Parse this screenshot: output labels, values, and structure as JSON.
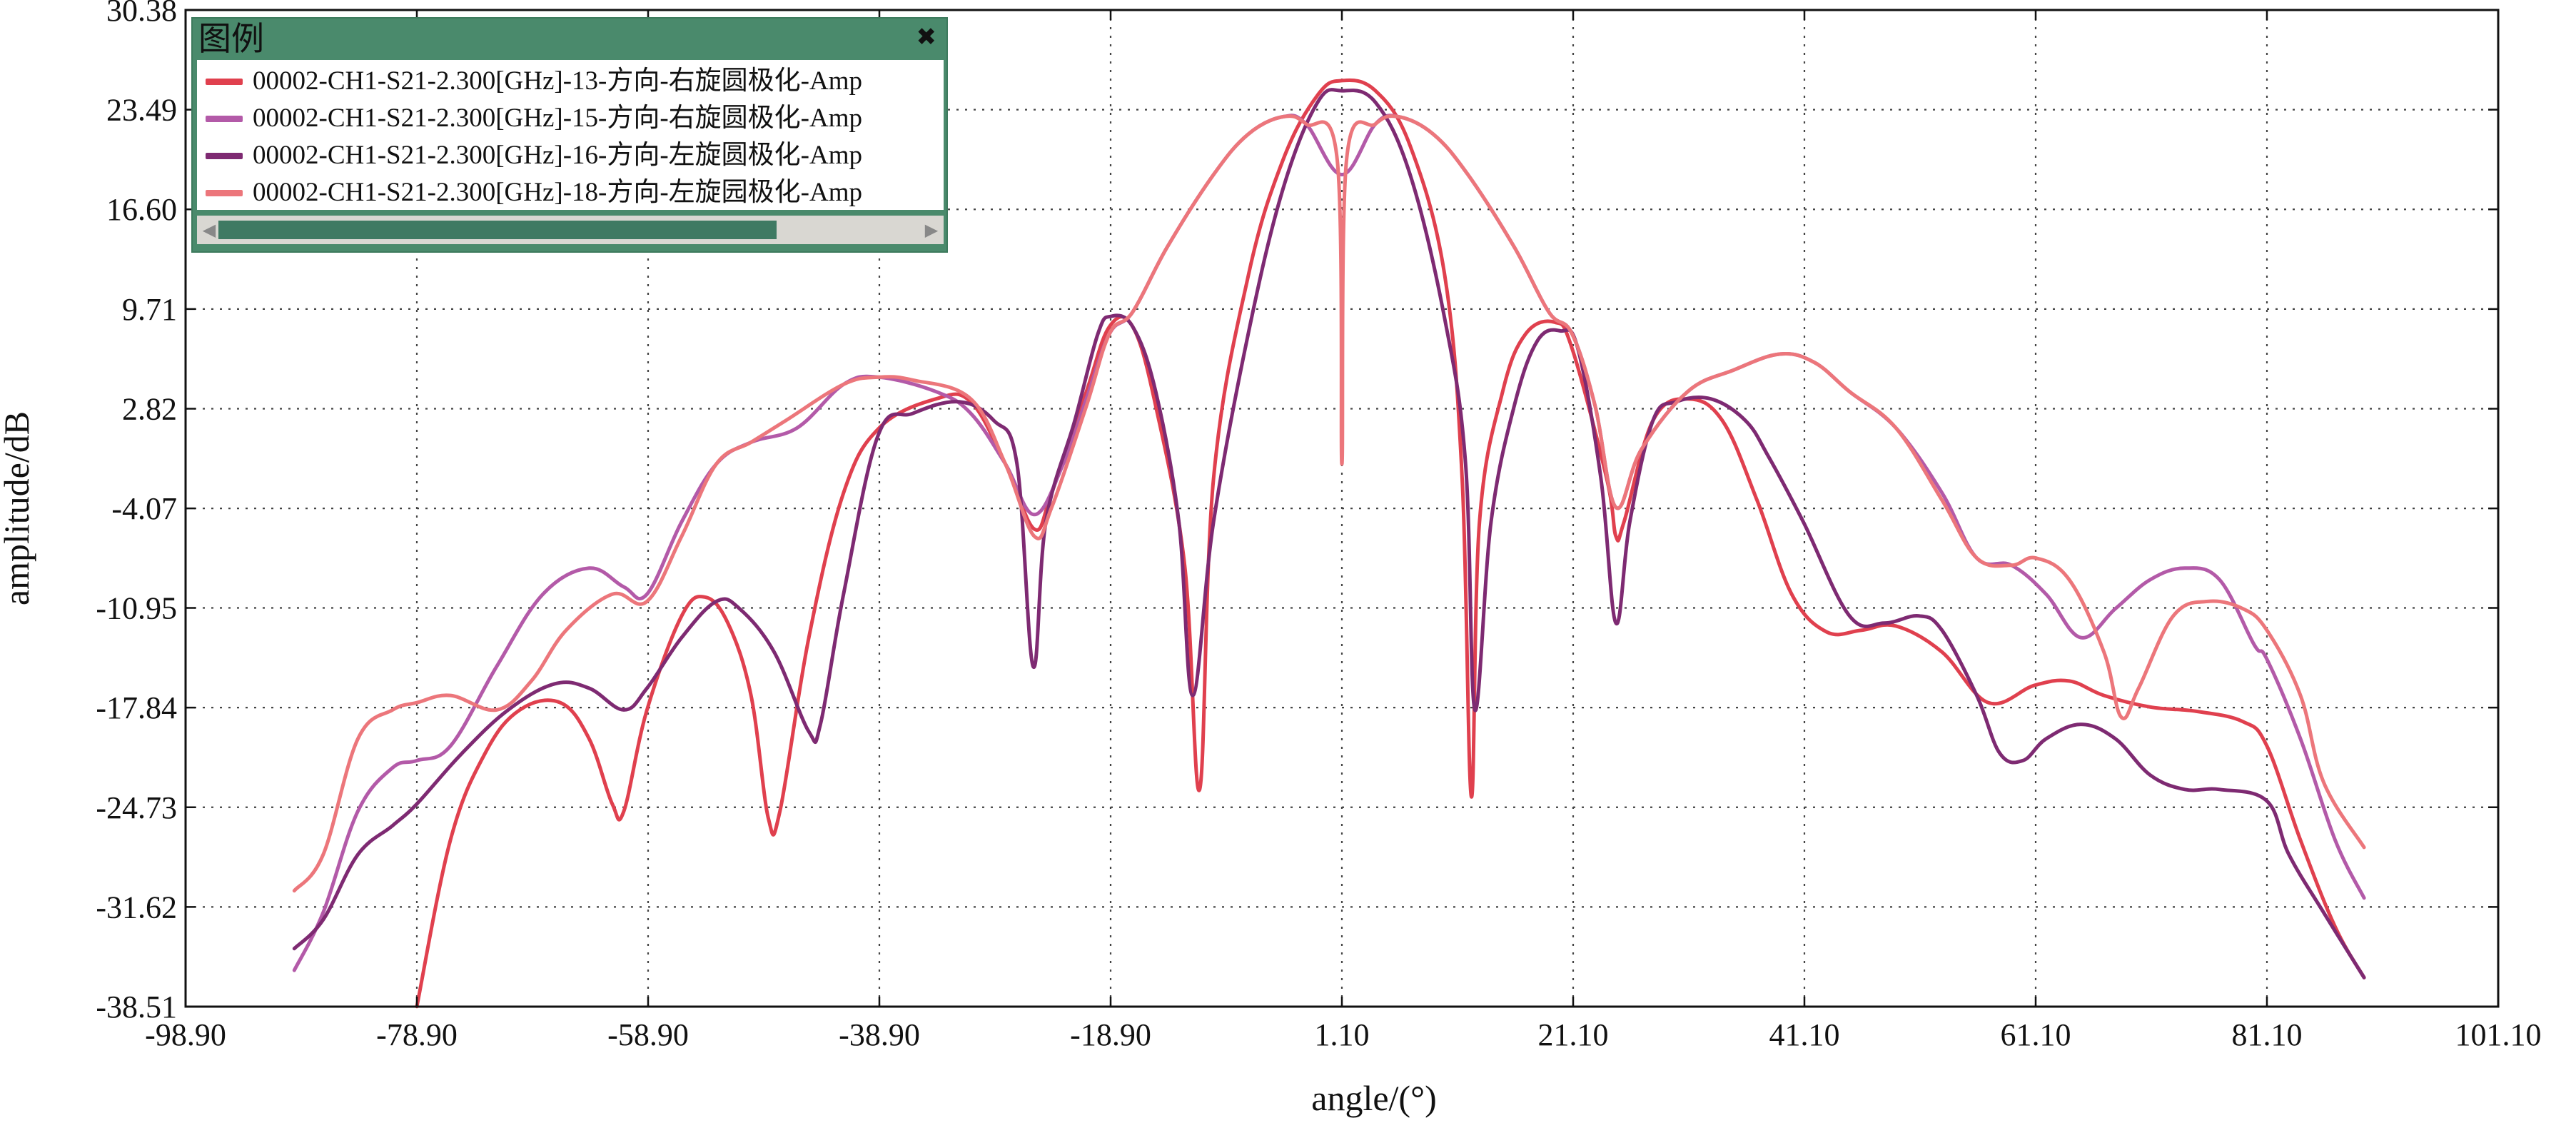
{
  "chart_data": {
    "type": "line",
    "xlabel": "angle/(°)",
    "ylabel": "amplitude/dB",
    "xlim": [
      -98.9,
      101.1
    ],
    "ylim": [
      -38.51,
      30.38
    ],
    "x_ticks": [
      "-98.90",
      "-78.90",
      "-58.90",
      "-38.90",
      "-18.90",
      "1.10",
      "21.10",
      "41.10",
      "61.10",
      "81.10",
      "101.10"
    ],
    "y_ticks": [
      "30.38",
      "23.49",
      "16.60",
      "9.71",
      "2.82",
      "-4.07",
      "-10.95",
      "-17.84",
      "-24.73",
      "-31.62",
      "-38.51"
    ],
    "grid": true,
    "legend_position": "top-left",
    "series": [
      {
        "name": "00002-CH1-S21-2.300[GHz]-13-方向-右旋圆极化-Amp",
        "color": "#e0404e",
        "points": [
          [
            -78.9,
            -38.5
          ],
          [
            -76,
            -27
          ],
          [
            -73,
            -21
          ],
          [
            -70,
            -18
          ],
          [
            -66.5,
            -17.5
          ],
          [
            -64,
            -20
          ],
          [
            -62,
            -24.5
          ],
          [
            -61,
            -25
          ],
          [
            -59,
            -18
          ],
          [
            -56,
            -11.5
          ],
          [
            -54,
            -10.2
          ],
          [
            -52,
            -12
          ],
          [
            -50,
            -17
          ],
          [
            -48.5,
            -25.5
          ],
          [
            -47.5,
            -25
          ],
          [
            -45,
            -13
          ],
          [
            -42,
            -3
          ],
          [
            -38.9,
            1.5
          ],
          [
            -34,
            3.5
          ],
          [
            -31,
            3.3
          ],
          [
            -28,
            -1
          ],
          [
            -25.5,
            -5.5
          ],
          [
            -24,
            -3
          ],
          [
            -21,
            4
          ],
          [
            -19,
            8.5
          ],
          [
            -17,
            8.5
          ],
          [
            -15,
            3
          ],
          [
            -12.5,
            -8
          ],
          [
            -11.2,
            -23.5
          ],
          [
            -10,
            -2
          ],
          [
            -7,
            12
          ],
          [
            -4,
            20
          ],
          [
            -1,
            24.5
          ],
          [
            1.1,
            25.5
          ],
          [
            4,
            24.8
          ],
          [
            7,
            21
          ],
          [
            10,
            12
          ],
          [
            11.5,
            -2
          ],
          [
            12.3,
            -24
          ],
          [
            13,
            -5
          ],
          [
            15,
            4
          ],
          [
            17,
            8
          ],
          [
            19.5,
            8.8
          ],
          [
            21,
            7
          ],
          [
            24,
            -2
          ],
          [
            24.8,
            -6
          ],
          [
            25.5,
            -5
          ],
          [
            28,
            2
          ],
          [
            31,
            3.5
          ],
          [
            34,
            2
          ],
          [
            37,
            -3.5
          ],
          [
            40,
            -10
          ],
          [
            43,
            -12.6
          ],
          [
            46,
            -12.5
          ],
          [
            49,
            -12.2
          ],
          [
            53,
            -14
          ],
          [
            57,
            -17.5
          ],
          [
            61,
            -16.3
          ],
          [
            64,
            -16
          ],
          [
            67,
            -17
          ],
          [
            71,
            -17.8
          ],
          [
            75,
            -18.1
          ],
          [
            79,
            -18.8
          ],
          [
            81.1,
            -20.5
          ],
          [
            84,
            -27
          ],
          [
            87,
            -33
          ],
          [
            89.5,
            -36.5
          ]
        ]
      },
      {
        "name": "00002-CH1-S21-2.300[GHz]-15-方向-右旋圆极化-Amp",
        "color": "#b35aa8",
        "points": [
          [
            -89.5,
            -36
          ],
          [
            -87,
            -32
          ],
          [
            -84,
            -25
          ],
          [
            -81,
            -22
          ],
          [
            -78.9,
            -21.5
          ],
          [
            -76,
            -20.5
          ],
          [
            -72,
            -15
          ],
          [
            -68,
            -10
          ],
          [
            -64,
            -8.2
          ],
          [
            -61,
            -9.5
          ],
          [
            -59,
            -10
          ],
          [
            -56,
            -5
          ],
          [
            -53,
            -1
          ],
          [
            -50,
            0.5
          ],
          [
            -46,
            1.5
          ],
          [
            -42,
            4.5
          ],
          [
            -39,
            5
          ],
          [
            -34,
            4
          ],
          [
            -31,
            2.5
          ],
          [
            -28,
            -1
          ],
          [
            -25.5,
            -4.5
          ],
          [
            -23,
            -1
          ],
          [
            -21,
            3.5
          ],
          [
            -19,
            8
          ],
          [
            -17,
            9.5
          ],
          [
            -14,
            14
          ],
          [
            -10,
            19
          ],
          [
            -7,
            21.8
          ],
          [
            -4,
            23
          ],
          [
            -2,
            22.5
          ],
          [
            1.1,
            19
          ],
          [
            4,
            22.5
          ],
          [
            6,
            23
          ],
          [
            9,
            21.8
          ],
          [
            12,
            19
          ],
          [
            16,
            14
          ],
          [
            19,
            9.5
          ],
          [
            21,
            8
          ],
          [
            23,
            3
          ],
          [
            24.8,
            -4
          ],
          [
            27,
            0
          ],
          [
            31,
            4
          ],
          [
            35,
            5.5
          ],
          [
            39,
            6.6
          ],
          [
            42,
            6
          ],
          [
            45,
            4
          ],
          [
            49,
            1.5
          ],
          [
            53,
            -3
          ],
          [
            56,
            -7.5
          ],
          [
            59,
            -8
          ],
          [
            62,
            -10
          ],
          [
            65,
            -13
          ],
          [
            68,
            -11
          ],
          [
            71,
            -9
          ],
          [
            74,
            -8.2
          ],
          [
            77,
            -9
          ],
          [
            80,
            -13.5
          ],
          [
            81.1,
            -14.5
          ],
          [
            84,
            -20
          ],
          [
            87,
            -27
          ],
          [
            89.5,
            -31
          ]
        ]
      },
      {
        "name": "00002-CH1-S21-2.300[GHz]-16-方向-左旋圆极化-Amp",
        "color": "#7e2a72",
        "points": [
          [
            -89.5,
            -34.5
          ],
          [
            -87,
            -32.5
          ],
          [
            -84,
            -28
          ],
          [
            -81,
            -26
          ],
          [
            -78.9,
            -24.5
          ],
          [
            -75,
            -21
          ],
          [
            -71,
            -18
          ],
          [
            -67,
            -16.2
          ],
          [
            -64,
            -16.5
          ],
          [
            -61,
            -18
          ],
          [
            -59,
            -16.5
          ],
          [
            -56,
            -13
          ],
          [
            -53,
            -10.5
          ],
          [
            -51,
            -11
          ],
          [
            -48,
            -14
          ],
          [
            -45,
            -19.5
          ],
          [
            -44,
            -19
          ],
          [
            -42,
            -10
          ],
          [
            -39,
            1
          ],
          [
            -36,
            2.5
          ],
          [
            -32,
            3.3
          ],
          [
            -29,
            2
          ],
          [
            -27,
            -1
          ],
          [
            -25.6,
            -15
          ],
          [
            -24.5,
            -5
          ],
          [
            -22,
            2
          ],
          [
            -20,
            8
          ],
          [
            -18.9,
            9.2
          ],
          [
            -17,
            8.5
          ],
          [
            -15,
            4
          ],
          [
            -13,
            -5
          ],
          [
            -11.8,
            -17
          ],
          [
            -10,
            -5
          ],
          [
            -7,
            8
          ],
          [
            -4,
            18
          ],
          [
            -1,
            24
          ],
          [
            1.1,
            24.8
          ],
          [
            4,
            24
          ],
          [
            7,
            19
          ],
          [
            10,
            9
          ],
          [
            11.8,
            -1
          ],
          [
            12.6,
            -18
          ],
          [
            14,
            -5
          ],
          [
            16,
            3
          ],
          [
            18,
            7.5
          ],
          [
            20,
            8.2
          ],
          [
            21.5,
            7
          ],
          [
            23.5,
            -2
          ],
          [
            24.8,
            -12
          ],
          [
            26,
            -5
          ],
          [
            28,
            2
          ],
          [
            30,
            3.3
          ],
          [
            33,
            3.5
          ],
          [
            36,
            2
          ],
          [
            38,
            -0.5
          ],
          [
            41,
            -5
          ],
          [
            45,
            -11.5
          ],
          [
            48,
            -12
          ],
          [
            51,
            -11.5
          ],
          [
            53,
            -12.5
          ],
          [
            56,
            -17
          ],
          [
            58,
            -21
          ],
          [
            60,
            -21.5
          ],
          [
            62,
            -20
          ],
          [
            65,
            -19
          ],
          [
            68,
            -20
          ],
          [
            71,
            -22.5
          ],
          [
            74,
            -23.5
          ],
          [
            77,
            -23.5
          ],
          [
            81.1,
            -24.3
          ],
          [
            83,
            -28
          ],
          [
            86,
            -32
          ],
          [
            89.5,
            -36.5
          ]
        ]
      },
      {
        "name": "00002-CH1-S21-2.300[GHz]-18-方向-左旋园极化-Amp",
        "color": "#ec767b",
        "points": [
          [
            -89.5,
            -30.5
          ],
          [
            -87,
            -28
          ],
          [
            -84,
            -20
          ],
          [
            -81,
            -18
          ],
          [
            -78.9,
            -17.5
          ],
          [
            -76,
            -17
          ],
          [
            -72,
            -18
          ],
          [
            -69,
            -16
          ],
          [
            -66,
            -12.5
          ],
          [
            -62,
            -10
          ],
          [
            -59,
            -10.5
          ],
          [
            -56,
            -6
          ],
          [
            -53,
            -1
          ],
          [
            -50,
            0.5
          ],
          [
            -47,
            2
          ],
          [
            -42,
            4.5
          ],
          [
            -39,
            5
          ],
          [
            -36,
            4.8
          ],
          [
            -31,
            3.5
          ],
          [
            -28,
            -1
          ],
          [
            -25.5,
            -6
          ],
          [
            -24,
            -4
          ],
          [
            -21,
            3
          ],
          [
            -19,
            8
          ],
          [
            -17,
            9.5
          ],
          [
            -14,
            14
          ],
          [
            -10,
            19
          ],
          [
            -7,
            21.8
          ],
          [
            -4,
            23
          ],
          [
            -2,
            22.5
          ],
          [
            0.7,
            20
          ],
          [
            1.1,
            -1
          ],
          [
            1.5,
            20
          ],
          [
            4,
            22.5
          ],
          [
            6,
            23
          ],
          [
            9,
            21.8
          ],
          [
            12,
            19
          ],
          [
            16,
            14
          ],
          [
            19,
            9.5
          ],
          [
            21,
            8
          ],
          [
            23,
            3
          ],
          [
            24.8,
            -4
          ],
          [
            27,
            0
          ],
          [
            31,
            4
          ],
          [
            35,
            5.5
          ],
          [
            39,
            6.6
          ],
          [
            42,
            6
          ],
          [
            45,
            4
          ],
          [
            49,
            1.5
          ],
          [
            53,
            -3.5
          ],
          [
            56,
            -7.5
          ],
          [
            59,
            -8
          ],
          [
            61.1,
            -7.5
          ],
          [
            64,
            -9
          ],
          [
            67,
            -14
          ],
          [
            68.5,
            -18.5
          ],
          [
            70,
            -16.5
          ],
          [
            73,
            -11.5
          ],
          [
            76,
            -10.5
          ],
          [
            79,
            -11
          ],
          [
            81.1,
            -12.5
          ],
          [
            84,
            -17
          ],
          [
            86,
            -23
          ],
          [
            89.5,
            -27.5
          ]
        ]
      }
    ]
  },
  "legend": {
    "title": "图例",
    "close_icon": "close-icon",
    "scroll_left_icon": "scroll-left-icon",
    "scroll_right_icon": "scroll-right-icon"
  },
  "colors": {
    "legend_header": "#4a8a6c",
    "scroll_thumb": "#3f7a63",
    "grid": "#333333"
  }
}
